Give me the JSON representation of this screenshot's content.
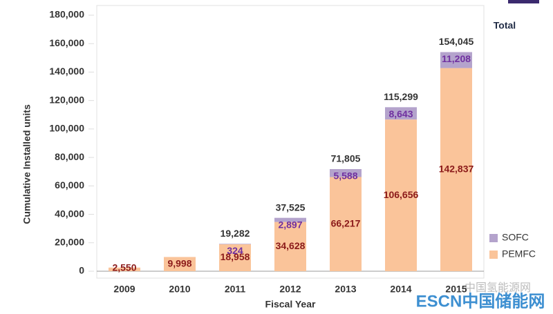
{
  "chart_data": {
    "type": "stacked-bar",
    "categories": [
      "2009",
      "2010",
      "2011",
      "2012",
      "2013",
      "2014",
      "2015"
    ],
    "series": [
      {
        "name": "PEMFC",
        "color": "#fac49a",
        "label_color": "#8b1a1a",
        "values": [
          2550,
          9998,
          18958,
          34628,
          66217,
          106656,
          142837
        ],
        "value_labels": [
          "2,550",
          "9,998",
          "18,958",
          "34,628",
          "66,217",
          "106,656",
          "142,837"
        ]
      },
      {
        "name": "SOFC",
        "color": "#b4a3cc",
        "label_color": "#7030a0",
        "values": [
          null,
          null,
          324,
          2897,
          5588,
          8643,
          11208
        ],
        "value_labels": [
          null,
          null,
          "324",
          "2,897",
          "5,588",
          "8,643",
          "11,208"
        ]
      }
    ],
    "totals": {
      "name": "Total",
      "values": [
        null,
        null,
        19282,
        37525,
        71805,
        115299,
        154045
      ],
      "value_labels": [
        null,
        null,
        "19,282",
        "37,525",
        "71,805",
        "115,299",
        "154,045"
      ]
    },
    "ylabel": "Cumulative Installed units",
    "xlabel": "Fiscal Year",
    "ylim": [
      0,
      180000
    ],
    "yticks": [
      0,
      {
        "value": 20000,
        "label": "20,000"
      },
      {
        "value": 40000,
        "label": "40,000"
      },
      {
        "value": 60000,
        "label": "60,000"
      },
      {
        "value": 80000,
        "label": "80,000"
      },
      {
        "value": 100000,
        "label": "100,000"
      },
      {
        "value": 120000,
        "label": "120,000"
      },
      {
        "value": 140000,
        "label": "140,000"
      },
      {
        "value": 160000,
        "label": "160,000"
      },
      {
        "value": 180000,
        "label": "180,000"
      }
    ],
    "legend": "bottom-right",
    "grid": false,
    "watermarks": [
      "中国氢能源网",
      "ESCN中国储能网"
    ]
  }
}
